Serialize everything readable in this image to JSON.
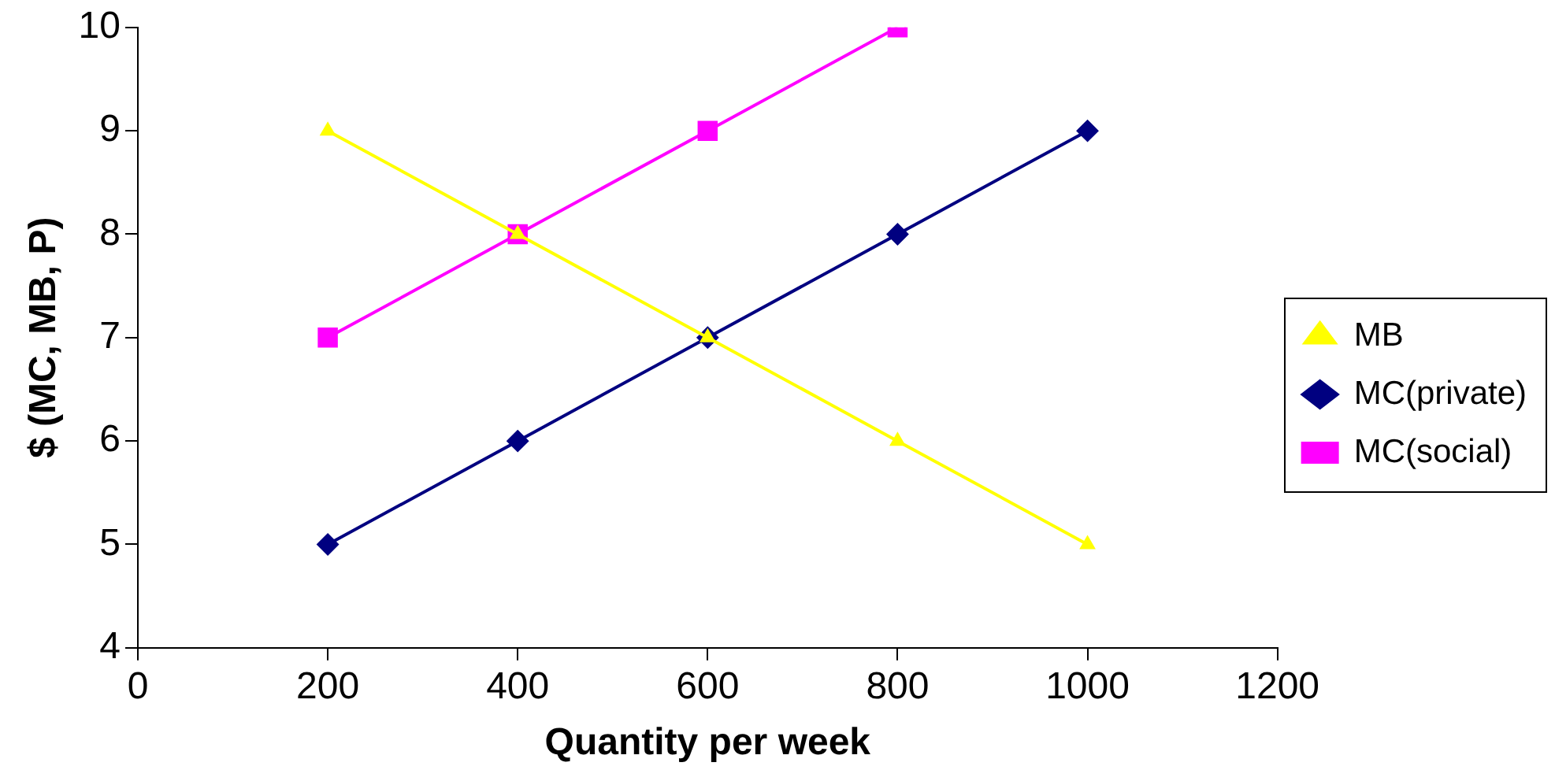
{
  "chart_data": {
    "type": "line",
    "xlabel": "Quantity per week",
    "ylabel": "$ (MC, MB, P)",
    "xlim": [
      0,
      1200
    ],
    "xticks": [
      0,
      200,
      400,
      600,
      800,
      1000,
      1200
    ],
    "ylim": [
      4,
      10
    ],
    "yticks": [
      4,
      5,
      6,
      7,
      8,
      9,
      10
    ],
    "grid": false,
    "legend": "right",
    "line_style": "solid",
    "series": [
      {
        "name": "MB",
        "color": "#ffff00",
        "marker": "triangle",
        "x": [
          200,
          400,
          600,
          800,
          1000
        ],
        "values": [
          9,
          8,
          7,
          6,
          5
        ]
      },
      {
        "name": "MC(private)",
        "color": "#000080",
        "marker": "diamond",
        "x": [
          200,
          400,
          600,
          800,
          1000
        ],
        "values": [
          5,
          6,
          7,
          8,
          9
        ]
      },
      {
        "name": "MC(social)",
        "color": "#ff00ff",
        "marker": "square",
        "x": [
          200,
          400,
          600,
          800
        ],
        "values": [
          7,
          8,
          9,
          10
        ]
      }
    ]
  }
}
